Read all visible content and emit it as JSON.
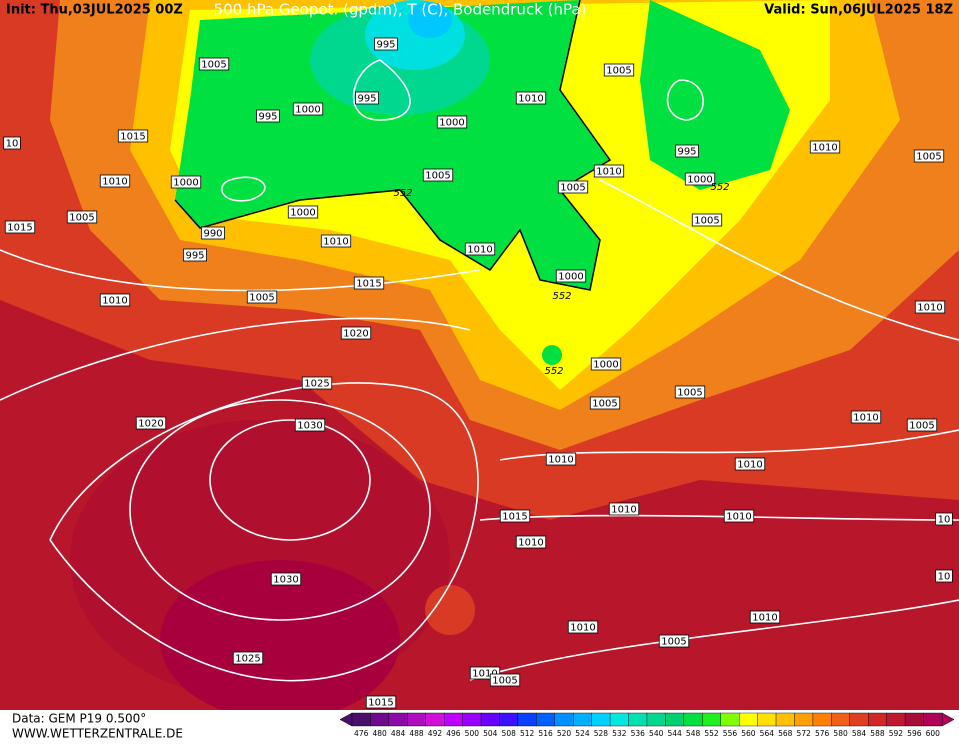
{
  "header": {
    "init": "Init: Thu,03JUL2025 00Z",
    "title": "500 hPa Geopot. (gpdm), T (C), Bodendruck (hPa)",
    "valid": "Valid: Sun,06JUL2025 18Z"
  },
  "footer": {
    "data": "Data: GEM P19 0.500°",
    "site": "WWW.WETTERZENTRALE.DE"
  },
  "isobar_labels": [
    "995",
    "1005",
    "1005",
    "995",
    "1000",
    "995",
    "1000",
    "1010",
    "1015",
    "10",
    "1010",
    "1005",
    "995",
    "1010",
    "1000",
    "1005",
    "1010",
    "1000",
    "1005",
    "1005",
    "1000",
    "1005",
    "1015",
    "990",
    "1010",
    "995",
    "1010",
    "1000",
    "1005",
    "1015",
    "1010",
    "1010",
    "1020",
    "1000",
    "1025",
    "1005",
    "1005",
    "1020",
    "1030",
    "1010",
    "1005",
    "1010",
    "1010",
    "1010",
    "1015",
    "1010",
    "10",
    "1010",
    "1030",
    "10",
    "1010",
    "1010",
    "1005",
    "1025",
    "1010",
    "1005",
    "1015"
  ],
  "height_labels": [
    "552",
    "552",
    "552",
    "552"
  ],
  "colorbar": {
    "values": [
      476,
      480,
      484,
      488,
      492,
      496,
      500,
      504,
      508,
      512,
      516,
      520,
      524,
      528,
      532,
      536,
      540,
      544,
      548,
      552,
      556,
      560,
      564,
      568,
      572,
      576,
      580,
      584,
      588,
      592,
      596,
      600
    ],
    "colors": [
      "#4b0f6b",
      "#6d0a8d",
      "#8e0aa8",
      "#b00cc0",
      "#d010d8",
      "#c000ff",
      "#9a00ff",
      "#6a00ff",
      "#3a10ff",
      "#0a40ff",
      "#0060ff",
      "#0090ff",
      "#00b0ff",
      "#00d0ff",
      "#00e8e0",
      "#00e0b0",
      "#00d890",
      "#00d070",
      "#00e040",
      "#20f020",
      "#80ff00",
      "#ffff00",
      "#ffe000",
      "#ffc000",
      "#ffa000",
      "#ff8000",
      "#f06018",
      "#e04020",
      "#d02828",
      "#c01830",
      "#a80c38",
      "#b0005a"
    ]
  }
}
